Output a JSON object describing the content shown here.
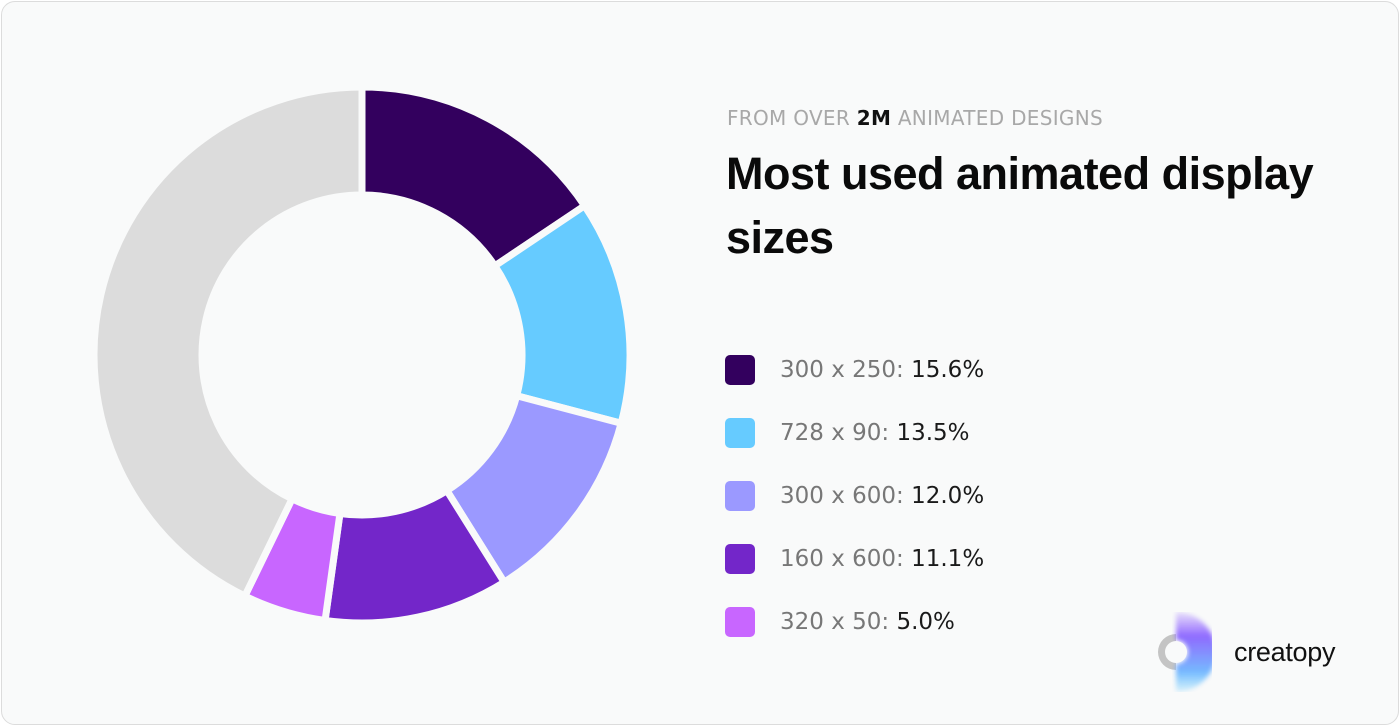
{
  "header": {
    "eyebrow_pre": "FROM OVER",
    "eyebrow_bold": "2M",
    "eyebrow_post": "ANIMATED DESIGNS",
    "title": "Most used animated display sizes"
  },
  "logo": {
    "text": "creatopy"
  },
  "chart_data": {
    "type": "pie",
    "variant": "donut",
    "categories": [
      "300 x 250",
      "728 x 90",
      "300 x 600",
      "160 x 600",
      "320 x 50"
    ],
    "values": [
      15.6,
      13.5,
      12.0,
      11.1,
      5.0
    ],
    "value_labels": [
      "15.6%",
      "13.5%",
      "12.0%",
      "11.1%",
      "5.0%"
    ],
    "colors": [
      "#33005e",
      "#66cbff",
      "#9b99ff",
      "#7326c9",
      "#c866ff"
    ],
    "remainder": {
      "value": 42.8,
      "color": "#dcdcdc"
    },
    "start": "top",
    "direction": "clockwise",
    "legend": "right"
  }
}
